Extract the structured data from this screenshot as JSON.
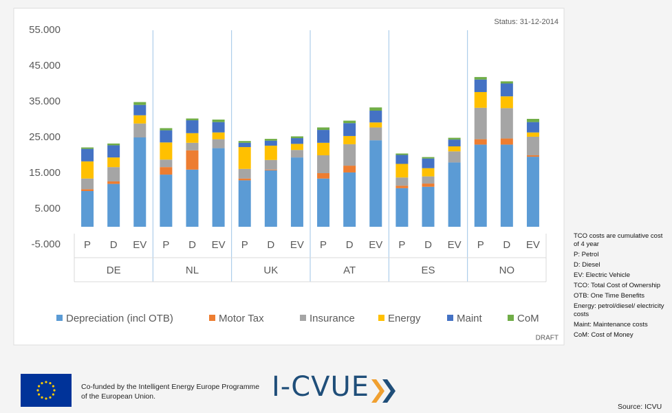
{
  "chart_data": {
    "type": "stacked_bar",
    "status": "Status: 31-12-2014",
    "draft": "DRAFT",
    "groups": [
      "DE",
      "NL",
      "UK",
      "AT",
      "ES",
      "NO"
    ],
    "categories": [
      "P",
      "D",
      "EV",
      "P",
      "D",
      "EV",
      "P",
      "D",
      "EV",
      "P",
      "D",
      "EV",
      "P",
      "D",
      "EV",
      "P",
      "D",
      "EV"
    ],
    "ylim": [
      -5000,
      55000
    ],
    "yticks": [
      {
        "value": -5000,
        "label": "-5.000"
      },
      {
        "value": 5000,
        "label": "5.000"
      },
      {
        "value": 15000,
        "label": "15.000"
      },
      {
        "value": 25000,
        "label": "25.000"
      },
      {
        "value": 35000,
        "label": "35.000"
      },
      {
        "value": 45000,
        "label": "45.000"
      },
      {
        "value": 55000,
        "label": "55.000"
      }
    ],
    "grid": false,
    "legend": "bottom",
    "series": [
      {
        "name": "Depreciation (incl OTB)",
        "color": "#5b9bd5",
        "values": [
          10000,
          12000,
          25000,
          14600,
          16000,
          22000,
          13000,
          15800,
          19400,
          13500,
          15200,
          24200,
          10800,
          11200,
          18000,
          23000,
          23000,
          19600
        ]
      },
      {
        "name": "Motor Tax",
        "color": "#ed7d31",
        "values": [
          500,
          700,
          0,
          2100,
          5400,
          0,
          500,
          200,
          0,
          1500,
          1900,
          0,
          700,
          900,
          0,
          1500,
          1700,
          400
        ]
      },
      {
        "name": "Insurance",
        "color": "#a5a5a5",
        "values": [
          3000,
          4000,
          3900,
          2100,
          2100,
          2500,
          2700,
          2700,
          2100,
          5000,
          6000,
          3600,
          2300,
          2000,
          3100,
          8800,
          8500,
          5200
        ]
      },
      {
        "name": "Energy",
        "color": "#ffc000",
        "values": [
          4800,
          2700,
          2300,
          4800,
          2700,
          1900,
          6100,
          4000,
          1700,
          3500,
          2300,
          1400,
          3800,
          2300,
          1400,
          4400,
          3300,
          1200
        ]
      },
      {
        "name": "Maint",
        "color": "#4472c4",
        "values": [
          3500,
          3400,
          2900,
          3400,
          3600,
          2900,
          1200,
          1400,
          1600,
          3600,
          3600,
          3300,
          2500,
          2700,
          1900,
          3500,
          3600,
          2900
        ]
      },
      {
        "name": "CoM",
        "color": "#70ad47",
        "values": [
          400,
          500,
          800,
          600,
          500,
          700,
          500,
          500,
          500,
          700,
          700,
          900,
          400,
          400,
          500,
          700,
          600,
          900
        ]
      }
    ]
  },
  "notes": [
    "TCO costs are cumulative cost of 4 year",
    "P: Petrol",
    "D: Diesel",
    "EV: Electric Vehicle",
    "TCO: Total Cost of Ownership",
    "OTB: One Time Benefits",
    "Energy: petrol/diesel/ electricity costs",
    "Maint: Maintenance costs",
    "CoM: Cost of Money"
  ],
  "footer": {
    "text": "Co-funded by the Intelligent Energy Europe Programme of the European Union.",
    "logo": "I-CVUE"
  },
  "source": "Source: ICVU"
}
